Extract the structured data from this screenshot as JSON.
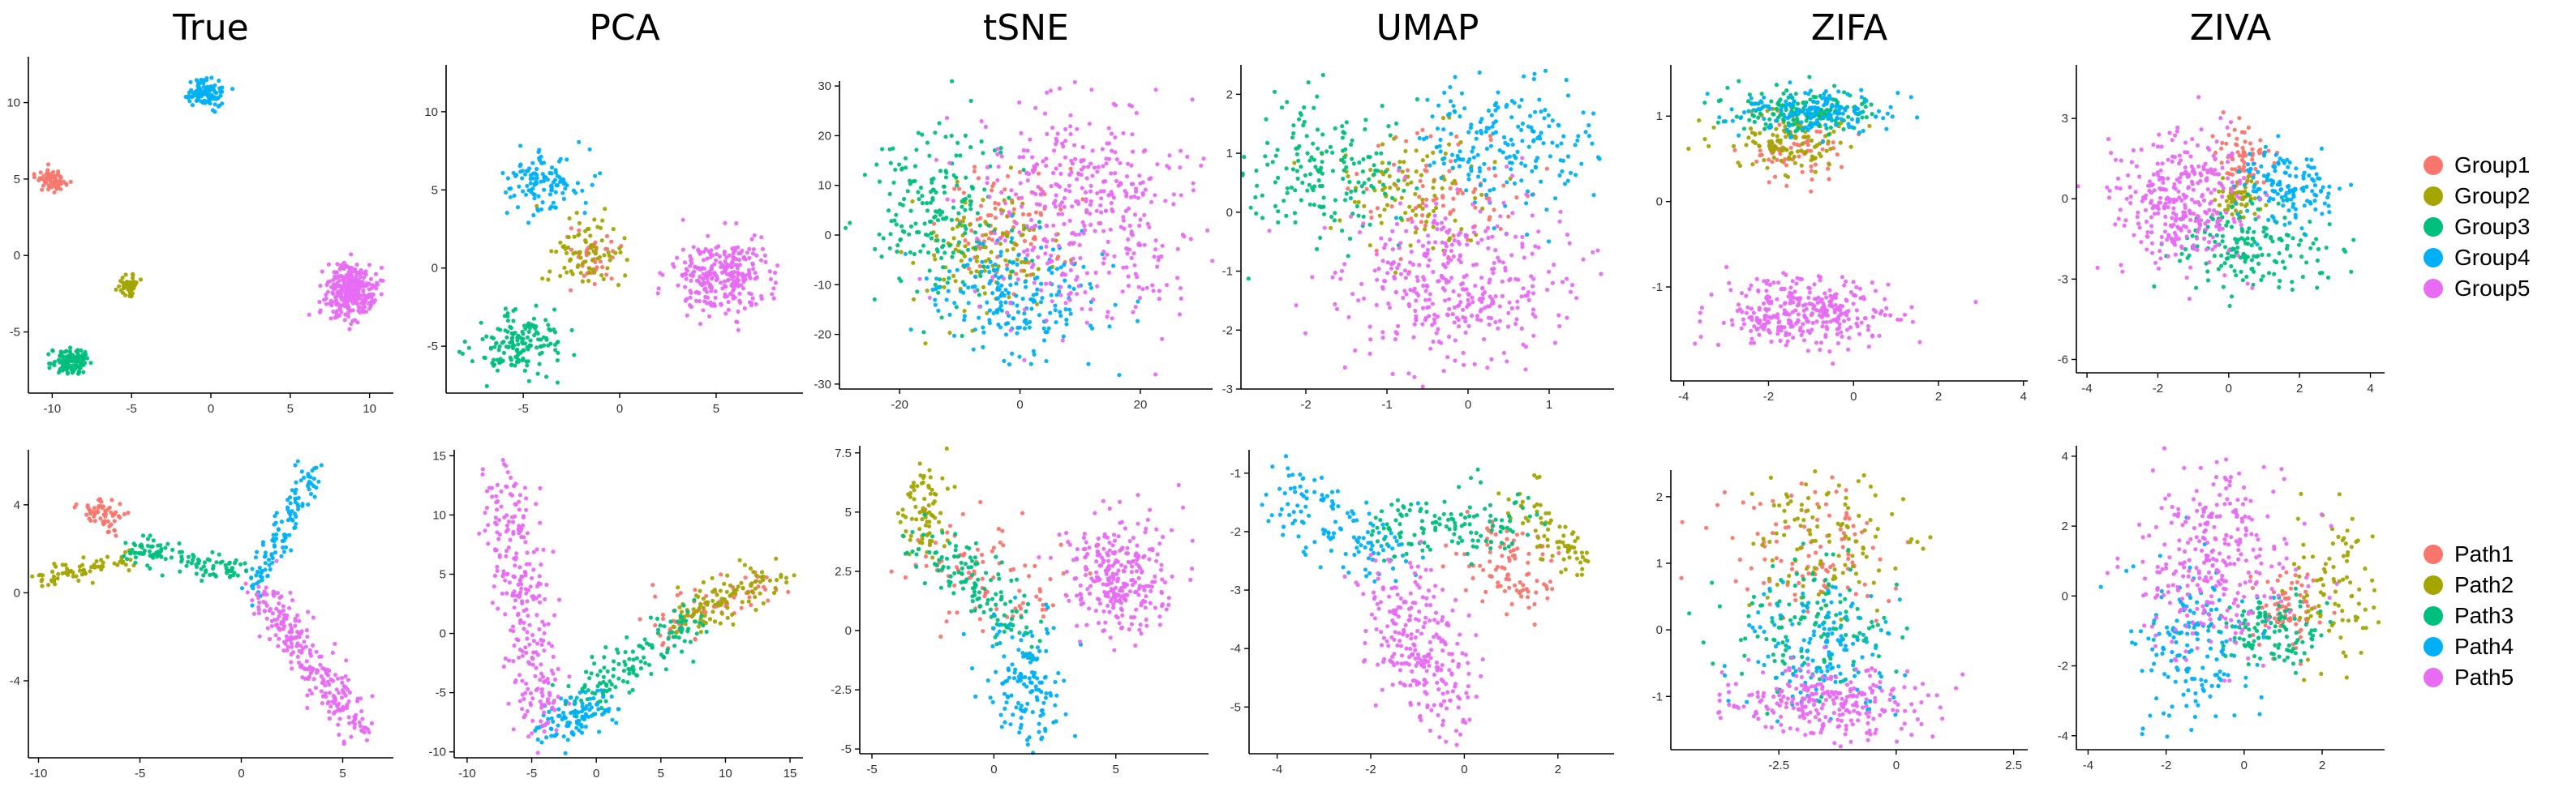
{
  "colors": {
    "c1": "#F8766D",
    "c2": "#A3A500",
    "c3": "#00BF7D",
    "c4": "#00B0F6",
    "c5": "#E76BF3"
  },
  "legends": {
    "groups": [
      "Group1",
      "Group2",
      "Group3",
      "Group4",
      "Group5"
    ],
    "paths": [
      "Path1",
      "Path2",
      "Path3",
      "Path4",
      "Path5"
    ]
  },
  "chart_data": [
    {
      "type": "scatter",
      "title": "True",
      "legend": "groups",
      "xlim": [
        -11.5,
        11.5
      ],
      "ylim": [
        -9,
        13
      ],
      "xticks": [
        -10,
        -5,
        0,
        5,
        10
      ],
      "yticks": [
        -5,
        0,
        5,
        10
      ],
      "clusters": [
        {
          "name": "Group1",
          "color": "c1",
          "cx": -10,
          "cy": 4.9,
          "sx": 0.45,
          "sy": 0.35,
          "n": 70
        },
        {
          "name": "Group2",
          "color": "c2",
          "cx": -5.2,
          "cy": -1.9,
          "sx": 0.35,
          "sy": 0.3,
          "n": 50
        },
        {
          "name": "Group3",
          "color": "c3",
          "cx": -8.8,
          "cy": -6.9,
          "sx": 0.6,
          "sy": 0.45,
          "n": 130
        },
        {
          "name": "Group4",
          "color": "c4",
          "cx": -0.4,
          "cy": 10.6,
          "sx": 0.55,
          "sy": 0.45,
          "n": 110
        },
        {
          "name": "Group5",
          "color": "c5",
          "cx": 8.8,
          "cy": -2.3,
          "sx": 0.8,
          "sy": 0.85,
          "n": 320
        }
      ]
    },
    {
      "type": "scatter",
      "title": "PCA",
      "legend": "groups",
      "xlim": [
        -9,
        9.5
      ],
      "ylim": [
        -8,
        13
      ],
      "xticks": [
        -5,
        0,
        5
      ],
      "yticks": [
        -5,
        0,
        5,
        10
      ],
      "clusters": [
        {
          "name": "Group1",
          "color": "c1",
          "cx": -1.5,
          "cy": 0.5,
          "sx": 0.8,
          "sy": 0.9,
          "n": 40
        },
        {
          "name": "Group2",
          "color": "c2",
          "cx": -1.8,
          "cy": 0.8,
          "sx": 0.9,
          "sy": 1.2,
          "n": 80
        },
        {
          "name": "Group3",
          "color": "c3",
          "cx": -5.3,
          "cy": -4.8,
          "sx": 1.1,
          "sy": 1.1,
          "n": 160
        },
        {
          "name": "Group4",
          "color": "c4",
          "cx": -3.9,
          "cy": 5.5,
          "sx": 1.0,
          "sy": 1.0,
          "n": 120
        },
        {
          "name": "Group5",
          "color": "c5",
          "cx": 5.2,
          "cy": -0.5,
          "sx": 1.3,
          "sy": 1.1,
          "n": 280
        }
      ]
    },
    {
      "type": "scatter",
      "title": "tSNE",
      "legend": "groups",
      "xlim": [
        -30,
        32
      ],
      "ylim": [
        -31,
        31
      ],
      "xticks": [
        -20,
        0,
        20
      ],
      "yticks": [
        -30,
        -20,
        -10,
        0,
        10,
        20,
        30
      ],
      "clusters": [
        {
          "name": "Group1",
          "color": "c1",
          "cx": -2,
          "cy": 2,
          "sx": 5,
          "sy": 6,
          "n": 90
        },
        {
          "name": "Group2",
          "color": "c2",
          "cx": -6,
          "cy": -4,
          "sx": 6,
          "sy": 7,
          "n": 110
        },
        {
          "name": "Group3",
          "color": "c3",
          "cx": -14,
          "cy": 4,
          "sx": 7,
          "sy": 9,
          "n": 200
        },
        {
          "name": "Group4",
          "color": "c4",
          "cx": 0,
          "cy": -14,
          "sx": 7,
          "sy": 6,
          "n": 200
        },
        {
          "name": "Group5",
          "color": "c5",
          "cx": 12,
          "cy": 6,
          "sx": 9,
          "sy": 11,
          "n": 420
        }
      ]
    },
    {
      "type": "scatter",
      "title": "UMAP",
      "legend": "groups",
      "xlim": [
        -2.8,
        1.8
      ],
      "ylim": [
        -3,
        2.5
      ],
      "xticks": [
        -2,
        -1,
        0,
        1
      ],
      "yticks": [
        -3,
        -2,
        -1,
        0,
        1,
        2
      ],
      "clusters": [
        {
          "name": "Group1",
          "color": "c1",
          "cx": -0.3,
          "cy": 0.3,
          "sx": 0.6,
          "sy": 0.5,
          "n": 80
        },
        {
          "name": "Group2",
          "color": "c2",
          "cx": -0.7,
          "cy": 0.4,
          "sx": 0.5,
          "sy": 0.5,
          "n": 100
        },
        {
          "name": "Group3",
          "color": "c3",
          "cx": -1.7,
          "cy": 0.8,
          "sx": 0.5,
          "sy": 0.6,
          "n": 180
        },
        {
          "name": "Group4",
          "color": "c4",
          "cx": 0.5,
          "cy": 1.2,
          "sx": 0.6,
          "sy": 0.6,
          "n": 200
        },
        {
          "name": "Group5",
          "color": "c5",
          "cx": -0.2,
          "cy": -1.2,
          "sx": 0.7,
          "sy": 0.7,
          "n": 380
        }
      ]
    },
    {
      "type": "scatter",
      "title": "ZIFA",
      "legend": "groups",
      "xlim": [
        -4.3,
        4.1
      ],
      "ylim": [
        -2.1,
        1.6
      ],
      "xticks": [
        -4,
        -2,
        0,
        2,
        4
      ],
      "yticks": [
        -1,
        0,
        1
      ],
      "clusters": [
        {
          "name": "Group1",
          "color": "c1",
          "cx": -1.3,
          "cy": 0.55,
          "sx": 0.6,
          "sy": 0.15,
          "n": 70
        },
        {
          "name": "Group2",
          "color": "c2",
          "cx": -1.5,
          "cy": 0.7,
          "sx": 0.8,
          "sy": 0.2,
          "n": 120
        },
        {
          "name": "Group3",
          "color": "c3",
          "cx": -1.2,
          "cy": 1.05,
          "sx": 0.9,
          "sy": 0.12,
          "n": 160
        },
        {
          "name": "Group4",
          "color": "c4",
          "cx": -0.9,
          "cy": 1.05,
          "sx": 0.9,
          "sy": 0.12,
          "n": 160
        },
        {
          "name": "Group5",
          "color": "c5",
          "cx": -1.2,
          "cy": -1.3,
          "sx": 1.0,
          "sy": 0.2,
          "n": 330
        }
      ]
    },
    {
      "type": "scatter",
      "title": "ZIVA",
      "legend": "groups",
      "xlim": [
        -4.3,
        4.4
      ],
      "ylim": [
        -6.5,
        5
      ],
      "xticks": [
        -4,
        -2,
        0,
        2,
        4
      ],
      "yticks": [
        -6,
        -3,
        0,
        3
      ],
      "clusters": [
        {
          "name": "Group1",
          "color": "c1",
          "cx": 0.3,
          "cy": 1.5,
          "sx": 0.4,
          "sy": 0.6,
          "n": 70
        },
        {
          "name": "Group2",
          "color": "c2",
          "cx": 0.2,
          "cy": 0.0,
          "sx": 0.3,
          "sy": 0.4,
          "n": 60
        },
        {
          "name": "Group3",
          "color": "c3",
          "cx": 0.6,
          "cy": -1.8,
          "sx": 1.0,
          "sy": 0.8,
          "n": 170
        },
        {
          "name": "Group4",
          "color": "c4",
          "cx": 1.6,
          "cy": 0.4,
          "sx": 0.7,
          "sy": 0.7,
          "n": 140
        },
        {
          "name": "Group5",
          "color": "c5",
          "cx": -1.3,
          "cy": 0.0,
          "sx": 0.9,
          "sy": 1.2,
          "n": 330
        }
      ]
    },
    {
      "type": "scatter",
      "title": "",
      "legend": "paths",
      "xlim": [
        -10.5,
        7.5
      ],
      "ylim": [
        -7.5,
        6.5
      ],
      "xticks": [
        -10,
        -5,
        0,
        5
      ],
      "yticks": [
        -4,
        0,
        4
      ],
      "paths": [
        {
          "name": "Path1",
          "color": "c1",
          "pts": [
            [
              -7.5,
              4
            ],
            [
              -6.2,
              3.2
            ]
          ],
          "w": 0.4,
          "n": 60
        },
        {
          "name": "Path2",
          "color": "c2",
          "pts": [
            [
              -10,
              0.6
            ],
            [
              -5.5,
              1.5
            ]
          ],
          "w": 0.25,
          "n": 70
        },
        {
          "name": "Path3",
          "color": "c3",
          "pts": [
            [
              -5.5,
              2
            ],
            [
              0,
              1
            ]
          ],
          "w": 0.3,
          "n": 120
        },
        {
          "name": "Path4",
          "color": "c4",
          "pts": [
            [
              0.5,
              0
            ],
            [
              3.5,
              5.5
            ]
          ],
          "w": 0.35,
          "n": 120
        },
        {
          "name": "Path5",
          "color": "c5",
          "pts": [
            [
              1,
              0
            ],
            [
              5.7,
              -6.2
            ]
          ],
          "w": 0.5,
          "n": 260
        }
      ]
    },
    {
      "type": "scatter",
      "title": "",
      "legend": "paths",
      "xlim": [
        -11,
        16
      ],
      "ylim": [
        -10.5,
        15.5
      ],
      "xticks": [
        -10,
        -5,
        0,
        5,
        10,
        15
      ],
      "yticks": [
        -10,
        -5,
        0,
        5,
        10,
        15
      ],
      "paths": [
        {
          "name": "Path1",
          "color": "c1",
          "pts": [
            [
              5,
              1
            ],
            [
              13,
              4
            ]
          ],
          "w": 1.1,
          "n": 70
        },
        {
          "name": "Path2",
          "color": "c2",
          "pts": [
            [
              6,
              1
            ],
            [
              14,
              5
            ]
          ],
          "w": 0.9,
          "n": 110
        },
        {
          "name": "Path3",
          "color": "c3",
          "pts": [
            [
              -2,
              -6
            ],
            [
              8,
              1
            ]
          ],
          "w": 1.0,
          "n": 140
        },
        {
          "name": "Path4",
          "color": "c4",
          "pts": [
            [
              -4,
              -8
            ],
            [
              1,
              -6
            ]
          ],
          "w": 0.8,
          "n": 110
        },
        {
          "name": "Path5",
          "color": "c5",
          "pts": [
            [
              -7,
              13
            ],
            [
              -4,
              -8
            ]
          ],
          "w": 1.1,
          "n": 280
        }
      ]
    },
    {
      "type": "scatter",
      "title": "",
      "legend": "paths",
      "xlim": [
        -5.5,
        8.8
      ],
      "ylim": [
        -5.2,
        7.8
      ],
      "xticks": [
        -5,
        0,
        5
      ],
      "yticks": [
        -5.0,
        -2.5,
        0.0,
        2.5,
        5.0,
        7.5
      ],
      "paths": [
        {
          "name": "Path1",
          "color": "c1",
          "pts": [
            [
              -3,
              3.5
            ],
            [
              2,
              1.5
            ]
          ],
          "w": 1.2,
          "n": 90
        },
        {
          "name": "Path2",
          "color": "c2",
          "pts": [
            [
              -3,
              6.5
            ],
            [
              -2.5,
              3.5
            ]
          ],
          "w": 0.5,
          "n": 80
        },
        {
          "name": "Path3",
          "color": "c3",
          "pts": [
            [
              -3,
              4
            ],
            [
              1.5,
              0
            ]
          ],
          "w": 0.6,
          "n": 130
        },
        {
          "name": "Path4",
          "color": "c4",
          "pts": [
            [
              1,
              0
            ],
            [
              1.5,
              -4
            ]
          ],
          "w": 0.8,
          "n": 140
        },
        {
          "name": "Path5",
          "color": "c5",
          "pts": [
            [
              5,
              3
            ],
            [
              5,
              1.5
            ]
          ],
          "w": 1.2,
          "n": 280
        }
      ]
    },
    {
      "type": "scatter",
      "title": "",
      "legend": "paths",
      "xlim": [
        -4.6,
        3.2
      ],
      "ylim": [
        -5.8,
        -0.6
      ],
      "xticks": [
        -4,
        -2,
        0,
        2
      ],
      "yticks": [
        -5,
        -4,
        -3,
        -2,
        -1
      ],
      "paths": [
        {
          "name": "Path1",
          "color": "c1",
          "pts": [
            [
              0.5,
              -2.2
            ],
            [
              1.5,
              -3
            ]
          ],
          "w": 0.4,
          "n": 90
        },
        {
          "name": "Path2",
          "color": "c2",
          "pts": [
            [
              1.2,
              -1.4
            ],
            [
              2.7,
              -2.8
            ]
          ],
          "w": 0.25,
          "n": 70
        },
        {
          "name": "Path3",
          "color": "c3",
          "pts": [
            [
              -2,
              -2
            ],
            [
              1.5,
              -1.8
            ]
          ],
          "w": 0.3,
          "n": 130
        },
        {
          "name": "Path4",
          "color": "c4",
          "pts": [
            [
              -4,
              -1.2
            ],
            [
              -1.5,
              -2.5
            ]
          ],
          "w": 0.3,
          "n": 130
        },
        {
          "name": "Path5",
          "color": "c5",
          "pts": [
            [
              -1.5,
              -3
            ],
            [
              -0.3,
              -5
            ]
          ],
          "w": 0.45,
          "n": 260
        }
      ]
    },
    {
      "type": "scatter",
      "title": "",
      "legend": "paths",
      "xlim": [
        -4.8,
        2.8
      ],
      "ylim": [
        -1.8,
        2.4
      ],
      "xticks": [
        -2.5,
        0.0,
        2.5
      ],
      "yticks": [
        -1,
        0,
        1,
        2
      ],
      "clusters": [
        {
          "name": "Path1",
          "color": "c1",
          "cx": -1.8,
          "cy": 1.2,
          "sx": 0.9,
          "sy": 0.5,
          "n": 100
        },
        {
          "name": "Path2",
          "color": "c2",
          "cx": -1.5,
          "cy": 1.4,
          "sx": 0.8,
          "sy": 0.5,
          "n": 110
        },
        {
          "name": "Path3",
          "color": "c3",
          "cx": -1.8,
          "cy": 0.1,
          "sx": 0.9,
          "sy": 0.5,
          "n": 130
        },
        {
          "name": "Path4",
          "color": "c4",
          "cx": -1.7,
          "cy": -0.3,
          "sx": 0.8,
          "sy": 0.5,
          "n": 140
        },
        {
          "name": "Path5",
          "color": "c5",
          "cx": -1.5,
          "cy": -1.1,
          "sx": 1.0,
          "sy": 0.25,
          "n": 260
        }
      ]
    },
    {
      "type": "scatter",
      "title": "",
      "legend": "paths",
      "xlim": [
        -4.3,
        3.6
      ],
      "ylim": [
        -4.4,
        4.3
      ],
      "xticks": [
        -4,
        -2,
        0,
        2
      ],
      "yticks": [
        -4,
        -2,
        0,
        2,
        4
      ],
      "clusters": [
        {
          "name": "Path1",
          "color": "c1",
          "cx": 1.1,
          "cy": -0.3,
          "sx": 0.4,
          "sy": 0.6,
          "n": 70
        },
        {
          "name": "Path2",
          "color": "c2",
          "cx": 2.4,
          "cy": 0.4,
          "sx": 0.6,
          "sy": 1.2,
          "n": 90
        },
        {
          "name": "Path3",
          "color": "c3",
          "cx": 0.6,
          "cy": -1.0,
          "sx": 0.7,
          "sy": 0.6,
          "n": 120
        },
        {
          "name": "Path4",
          "color": "c4",
          "cx": -1.2,
          "cy": -1.4,
          "sx": 0.8,
          "sy": 1.2,
          "n": 160
        },
        {
          "name": "Path5",
          "color": "c5",
          "cx": -0.7,
          "cy": 1.0,
          "sx": 1.0,
          "sy": 1.3,
          "n": 300
        }
      ]
    }
  ]
}
